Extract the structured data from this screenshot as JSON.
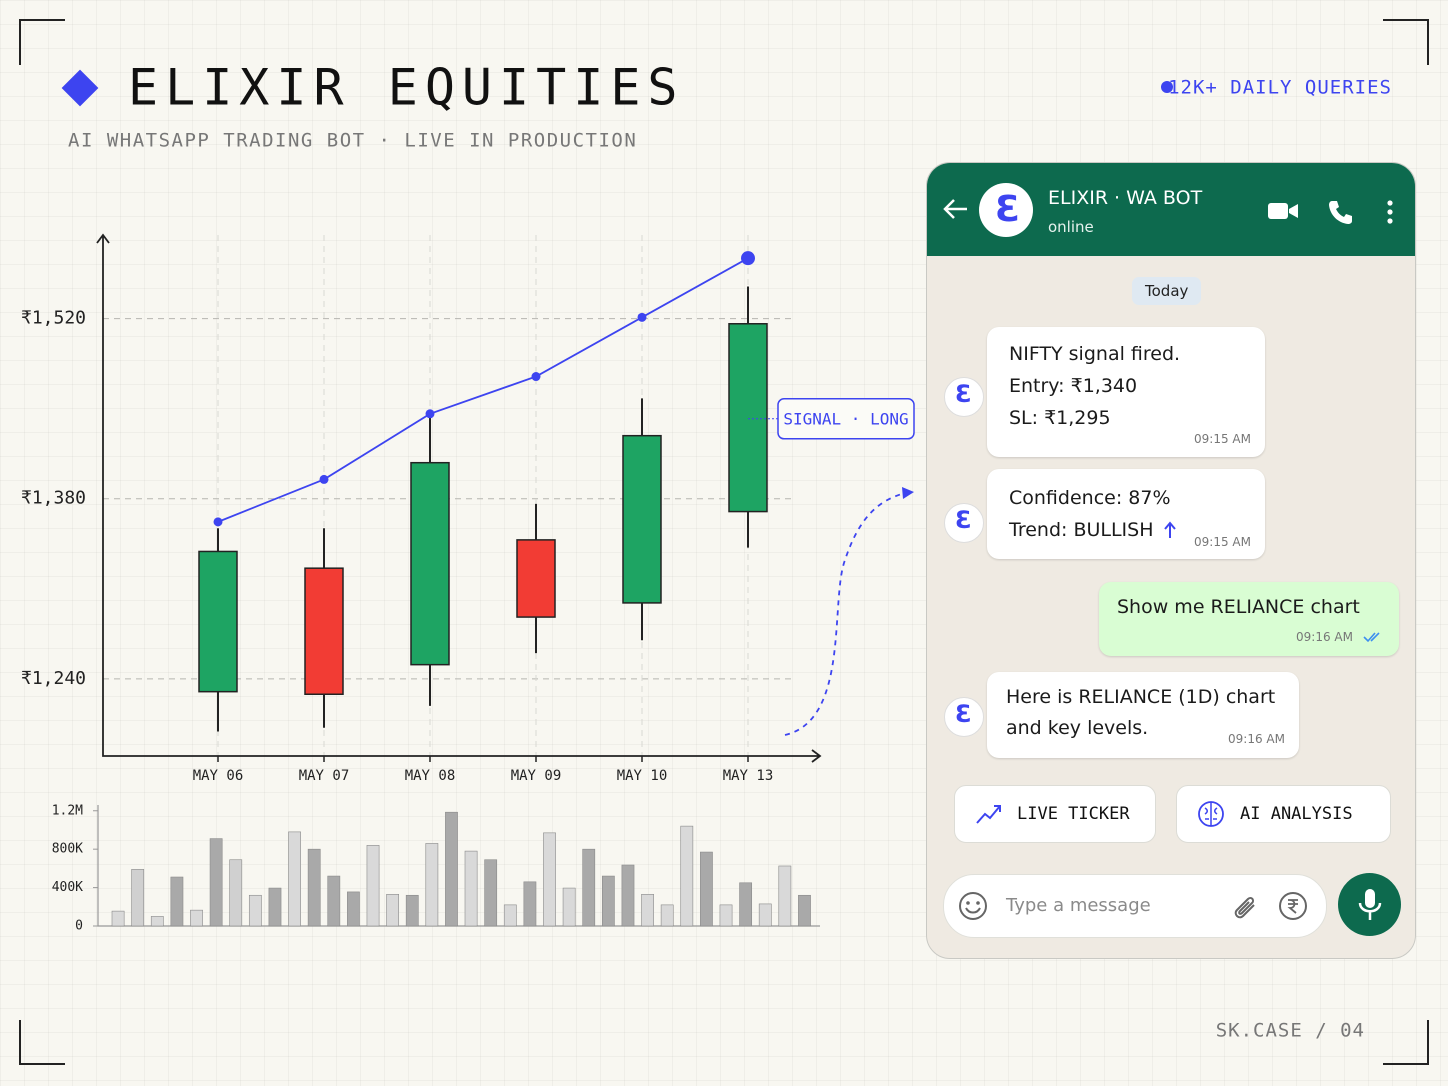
{
  "header": {
    "title": "ELIXIR EQUITIES",
    "subtitle": "AI WHATSAPP TRADING BOT · LIVE IN PRODUCTION",
    "badge": "12K+ DAILY QUERIES"
  },
  "footer": "SK.CASE / 04",
  "chart_data": [
    {
      "type": "candlestick",
      "categories": [
        "MAY 06",
        "MAY 07",
        "MAY 08",
        "MAY 09",
        "MAY 10",
        "MAY 13"
      ],
      "open": [
        1230,
        1326,
        1251,
        1348,
        1299,
        1370
      ],
      "high": [
        1357,
        1357,
        1446,
        1376,
        1458,
        1545
      ],
      "low": [
        1199,
        1202,
        1219,
        1260,
        1270,
        1342
      ],
      "close": [
        1339,
        1228,
        1408,
        1288,
        1429,
        1516
      ],
      "up_color": "#1ea463",
      "down_color": "#f23c34",
      "trend": {
        "color": "#3d44f0",
        "values": [
          1362,
          1395,
          1446,
          1475,
          1521,
          1567
        ]
      },
      "annotation": "SIGNAL · LONG",
      "ylim": [
        1180,
        1585
      ],
      "yticks": [
        {
          "value": 1240,
          "label": "₹1,240"
        },
        {
          "value": 1380,
          "label": "₹1,380"
        },
        {
          "value": 1520,
          "label": "₹1,520"
        }
      ],
      "grid": true
    },
    {
      "type": "bar",
      "values": [
        155000,
        590000,
        100000,
        510000,
        165000,
        910000,
        690000,
        320000,
        395000,
        980000,
        800000,
        520000,
        355000,
        840000,
        330000,
        320000,
        860000,
        1185000,
        780000,
        690000,
        220000,
        460000,
        970000,
        395000,
        800000,
        520000,
        635000,
        330000,
        220000,
        1040000,
        770000,
        220000,
        450000,
        230000,
        625000,
        320000
      ],
      "colors": [
        "#d9d9d9",
        "#d0d0d0",
        "#d9d9d9",
        "#a9a9a9",
        "#d9d9d9",
        "#a9a9a9",
        "#d0d0d0",
        "#d9d9d9",
        "#a9a9a9",
        "#d9d9d9",
        "#a9a9a9",
        "#a9a9a9",
        "#a9a9a9",
        "#d9d9d9",
        "#d9d9d9",
        "#a9a9a9",
        "#d9d9d9",
        "#a9a9a9",
        "#d9d9d9",
        "#a9a9a9",
        "#d9d9d9",
        "#a9a9a9",
        "#d9d9d9",
        "#d9d9d9",
        "#a9a9a9",
        "#a9a9a9",
        "#a9a9a9",
        "#d9d9d9",
        "#d9d9d9",
        "#d9d9d9",
        "#a9a9a9",
        "#d9d9d9",
        "#a9a9a9",
        "#d9d9d9",
        "#d9d9d9",
        "#a9a9a9"
      ],
      "ylim": [
        0,
        1260000
      ],
      "yticks": [
        0,
        {
          "value": 400000,
          "label": "400K"
        },
        {
          "value": 800000,
          "label": "800K"
        },
        {
          "value": 1200000,
          "label": "1.2M"
        }
      ]
    }
  ],
  "chat": {
    "name": "ELIXIR · WA BOT",
    "status": "online",
    "date": "Today",
    "messages": [
      {
        "lines": [
          "NIFTY signal fired.",
          "Entry:  ₹1,340",
          "SL:  ₹1,295"
        ],
        "time": "09:15 AM"
      },
      {
        "lines": [
          "Confidence: 87%",
          "Trend:  BULLISH"
        ],
        "time": "09:15 AM"
      },
      {
        "lines": [
          "Show me RELIANCE chart"
        ],
        "time": "09:16 AM"
      },
      {
        "lines": [
          "Here is RELIANCE (1D) chart",
          "and key levels."
        ],
        "time": "09:16 AM"
      }
    ],
    "buttons": [
      "LIVE TICKER",
      "AI ANALYSIS"
    ],
    "placeholder": "Type a message"
  }
}
